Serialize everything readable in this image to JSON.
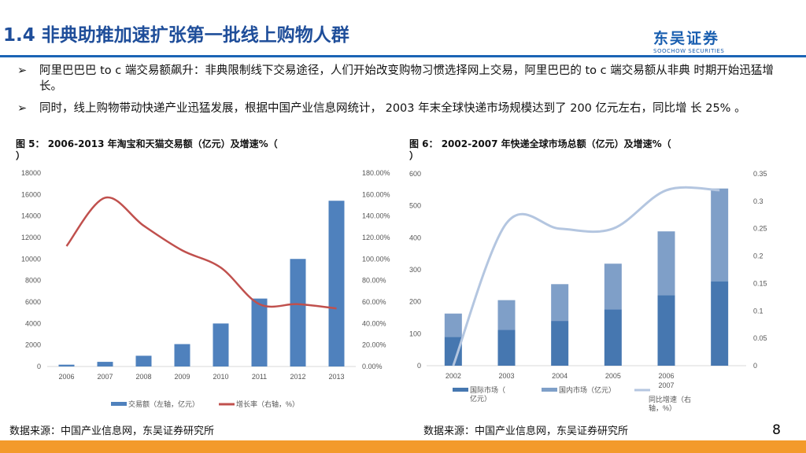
{
  "header": {
    "title": "1.4  非典助推加速扩张第一批线上购物人群",
    "logo_cn": "东吴证券",
    "logo_en": "SOOCHOW SECURITIES"
  },
  "bullets": [
    {
      "marker": "➢",
      "text": "阿里巴巴巴 to c 端交易额飙升：非典限制线下交易途径，人们开始改变购物习惯选择网上交易，阿里巴巴的 to c 端交易额从非典 时期开始迅猛增长。"
    },
    {
      "marker": "➢",
      "text": "同时，线上购物带动快递产业迅猛发展，根据中国产业信息网统计， 2003 年末全球快递市场规模达到了 200 亿元左右，同比增 长 25% 。"
    }
  ],
  "colors": {
    "title": "#1f4e9a",
    "rule": "#1b64b5",
    "footer": "#f39a2b",
    "bar1": "#4f81bd",
    "line1": "#c0504d",
    "bar_intl": "#4677b0",
    "bar_dom": "#7f9fc8",
    "line2": "#b4c6e0"
  },
  "chart_data": [
    {
      "type": "bar",
      "title": "图 5：  2006-2013 年淘宝和天猫交易额（亿元）及增速%（ ）",
      "categories": [
        "2006",
        "2007",
        "2008",
        "2009",
        "2010",
        "2011",
        "2012",
        "2013"
      ],
      "series": [
        {
          "name": "交易额（左轴，亿元）",
          "kind": "bar",
          "axis": "left",
          "values": [
            169,
            433,
            999,
            2083,
            4000,
            6320,
            10007,
            15420
          ]
        },
        {
          "name": "增长率（右轴，%）",
          "kind": "line",
          "axis": "right",
          "values": [
            112,
            157,
            131,
            108,
            92,
            58,
            58,
            54
          ]
        }
      ],
      "ylim": [
        0,
        18000
      ],
      "yticks": [
        "0",
        "2000",
        "4000",
        "6000",
        "8000",
        "10000",
        "12000",
        "14000",
        "16000",
        "18000"
      ],
      "y2lim": [
        0,
        180
      ],
      "y2ticks": [
        "0.00%",
        "20.00%",
        "40.00%",
        "60.00%",
        "80.00%",
        "100.00%",
        "120.00%",
        "140.00%",
        "160.00%",
        "180.00%"
      ],
      "legend": "bottom",
      "grid": false,
      "source": "数据来源：中国产业信息网，东吴证券研究所"
    },
    {
      "type": "bar",
      "stacked": true,
      "title": "图 6：  2002-2007 年快递全球市场总额（亿元）及增速%（ ）",
      "categories": [
        "2002",
        "2003",
        "2004",
        "2005",
        "2006 2007",
        ""
      ],
      "series": [
        {
          "name": "国际市场（亿元）",
          "kind": "bar",
          "axis": "left",
          "values": [
            90,
            112,
            140,
            176,
            220,
            264
          ]
        },
        {
          "name": "国内市场（亿元）",
          "kind": "bar",
          "axis": "left",
          "values": [
            73,
            93,
            115,
            143,
            200,
            290
          ]
        },
        {
          "name": "同比增速（右轴，%）",
          "kind": "line",
          "axis": "right",
          "values": [
            0,
            0.26,
            0.25,
            0.25,
            0.32,
            0.32
          ]
        }
      ],
      "ylim": [
        0,
        600
      ],
      "yticks": [
        "0",
        "100",
        "200",
        "300",
        "400",
        "500",
        "600"
      ],
      "y2lim": [
        0,
        0.35
      ],
      "y2ticks": [
        "0",
        "0.05",
        "0.1",
        "0.15",
        "0.2",
        "0.25",
        "0.3",
        "0.35"
      ],
      "legend": "bottom",
      "grid": false,
      "source": "数据来源：中国产业信息网，东吴证券研究所"
    }
  ],
  "page_number": "8"
}
